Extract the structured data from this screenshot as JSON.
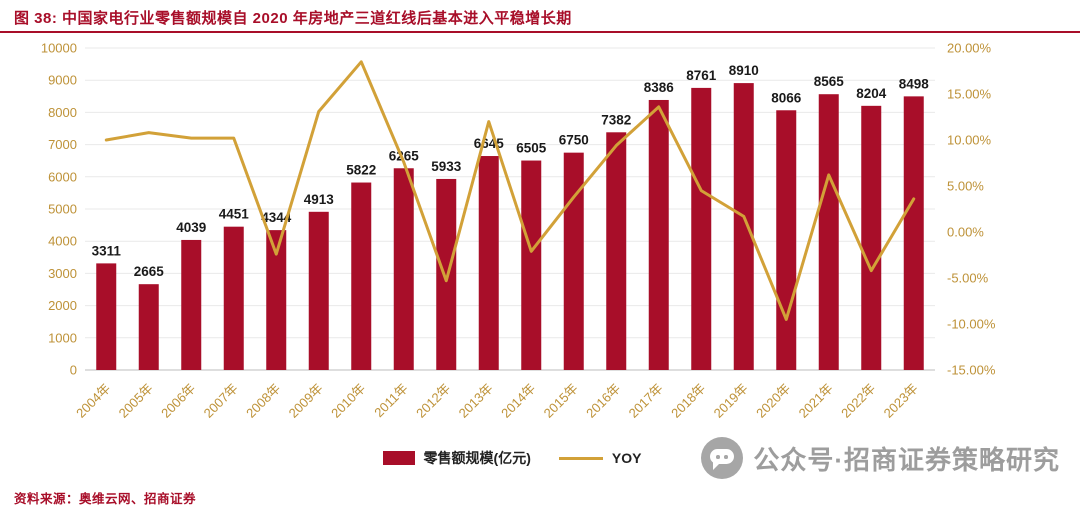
{
  "header": {
    "title": "图 38: 中国家电行业零售额规模自 2020 年房地产三道红线后基本进入平稳增长期"
  },
  "chart_data": {
    "type": "bar",
    "combo": "bar+line",
    "title": "中国家电行业零售额规模自 2020 年房地产三道红线后基本进入平稳增长期",
    "categories": [
      "2004年",
      "2005年",
      "2006年",
      "2007年",
      "2008年",
      "2009年",
      "2010年",
      "2011年",
      "2012年",
      "2013年",
      "2014年",
      "2015年",
      "2016年",
      "2017年",
      "2018年",
      "2019年",
      "2020年",
      "2021年",
      "2022年",
      "2023年"
    ],
    "series": [
      {
        "name": "零售额规模(亿元)",
        "type": "bar",
        "axis": "left",
        "color": "#A80E29",
        "values": [
          3311,
          2665,
          4039,
          4451,
          4344,
          4913,
          5822,
          6265,
          5933,
          6645,
          6505,
          6750,
          7382,
          8386,
          8761,
          8910,
          8066,
          8565,
          8204,
          8498
        ]
      },
      {
        "name": "YOY",
        "type": "line",
        "axis": "right",
        "color": "#D2A138",
        "values": [
          10.0,
          10.8,
          10.2,
          10.2,
          -2.4,
          13.1,
          18.5,
          7.6,
          -5.3,
          12.0,
          -2.1,
          3.8,
          9.4,
          13.6,
          4.5,
          1.7,
          -9.5,
          6.2,
          -4.2,
          3.6
        ]
      }
    ],
    "left_axis": {
      "min": 0,
      "max": 10000,
      "step": 1000
    },
    "right_axis": {
      "min": -15,
      "max": 20,
      "step": 5,
      "decimals": 2,
      "suffix": "%"
    },
    "grid": true,
    "legend_position": "bottom",
    "value_labels": true
  },
  "watermark": {
    "icon": "wechat-chat-icon",
    "text": "公众号·招商证券策略研究"
  },
  "footer": {
    "source": "资料来源：奥维云网、招商证券"
  },
  "colors": {
    "brand_red": "#A80E29",
    "gold_line": "#D2A138",
    "axis_label": "#BE9238",
    "value_label": "#1a1a1a",
    "grid": "#e9e9e9",
    "axis_base": "#bdbdbd",
    "watermark_gray": "#9d9d9d"
  }
}
